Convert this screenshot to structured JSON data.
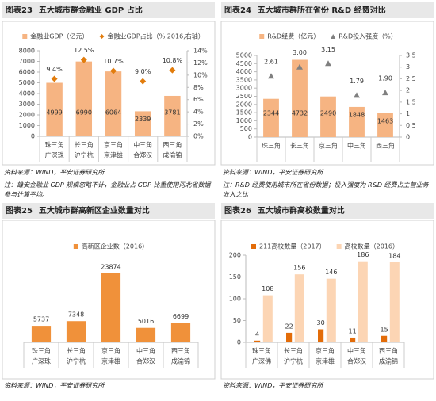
{
  "chart_data": [
    {
      "type": "combo",
      "figure": "图表23",
      "title": "五大城市群金融业 GDP 占比",
      "categories": [
        [
          "珠三角",
          "广深珠"
        ],
        [
          "长三角",
          "沪宁杭"
        ],
        [
          "京三角",
          "京津雄"
        ],
        [
          "中三角",
          "合郑汉"
        ],
        [
          "西三角",
          "成渝锦"
        ]
      ],
      "series": [
        {
          "name": "金融业GDP（亿元）",
          "kind": "bar",
          "color": "#f6b482",
          "values": [
            4999,
            6990,
            6064,
            2339,
            3781
          ]
        },
        {
          "name": "金融业GDP占比（%,2016,右轴）",
          "kind": "marker",
          "marker": "diamond",
          "axis": "y2",
          "color": "#e27c0c",
          "values": [
            9.4,
            12.5,
            10.7,
            9.0,
            10.8
          ],
          "value_labels": [
            "9.4%",
            "12.5%",
            "10.7%",
            "9.0%",
            "10.8%"
          ]
        }
      ],
      "ylim": [
        0,
        8000
      ],
      "yticks": [
        0,
        1000,
        2000,
        3000,
        4000,
        5000,
        6000,
        7000,
        8000
      ],
      "y2lim": [
        0,
        14
      ],
      "y2ticks": [
        {
          "value": 0,
          "label": "0%"
        },
        {
          "value": 2,
          "label": "2%"
        },
        {
          "value": 4,
          "label": "4%"
        },
        {
          "value": 6,
          "label": "6%"
        },
        {
          "value": 8,
          "label": "8%"
        },
        {
          "value": 10,
          "label": "10%"
        },
        {
          "value": 12,
          "label": "12%"
        },
        {
          "value": 14,
          "label": "14%"
        }
      ],
      "source": "资料来源：WIND，平安证券研究所",
      "note": "注：雄安金融业 GDP 规模忽略不计，金融业占 GDP 比重使用河北省数据参与计算平均。"
    },
    {
      "type": "combo",
      "figure": "图表24",
      "title": "五大城市群所在省份 R&D 经费对比",
      "categories": [
        [
          "珠三角"
        ],
        [
          "长三角"
        ],
        [
          "京三角"
        ],
        [
          "中三角"
        ],
        [
          "西三角"
        ]
      ],
      "series": [
        {
          "name": "R&D经费（亿元）",
          "kind": "bar",
          "color": "#f6b482",
          "values": [
            2344,
            4732,
            2490,
            1848,
            1463
          ]
        },
        {
          "name": "R&D投入强度（%）",
          "kind": "marker",
          "marker": "triangle",
          "axis": "y2",
          "color": "#808080",
          "values": [
            2.61,
            3.0,
            3.15,
            1.79,
            1.9
          ],
          "value_labels": [
            "2.61",
            "3.00",
            "3.15",
            "1.79",
            "1.90"
          ]
        }
      ],
      "ylim": [
        0,
        5000
      ],
      "yticks": [
        0,
        500,
        1000,
        1500,
        2000,
        2500,
        3000,
        3500,
        4000,
        4500,
        5000
      ],
      "y2lim": [
        0,
        3.5
      ],
      "y2ticks": [
        0,
        0.5,
        1,
        1.5,
        2,
        2.5,
        3,
        3.5
      ],
      "source": "资料来源：WIND，平安证券研究所",
      "note": "注：R&D 经费使用城市所在省份数据；投入强度为 R&D 经费占主营业务收入之比"
    },
    {
      "type": "bar",
      "figure": "图表25",
      "title": "五大城市群高新区企业数量对比",
      "categories": [
        [
          "珠三角",
          "广深珠"
        ],
        [
          "长三角",
          "沪宁杭"
        ],
        [
          "京三角",
          "京津雄"
        ],
        [
          "中三角",
          "合郑汉"
        ],
        [
          "西三角",
          "成渝锦"
        ]
      ],
      "series": [
        {
          "name": "高新区企业数（2016）",
          "kind": "bar",
          "color": "#f0913a",
          "values": [
            5737,
            7348,
            23874,
            5016,
            6699
          ]
        }
      ],
      "source": "资料来源：WIND，平安证券研究所"
    },
    {
      "type": "bar",
      "figure": "图表26",
      "title": "五大城市群高校数量对比",
      "categories": [
        [
          "珠三角",
          "广深佛"
        ],
        [
          "长三角",
          "沪宁杭"
        ],
        [
          "京三角",
          "京津雄"
        ],
        [
          "中三角",
          "合郑汉"
        ],
        [
          "西三角",
          "成渝锦"
        ]
      ],
      "series": [
        {
          "name": "211高校数量（2017）",
          "kind": "bar",
          "color": "#e36c09",
          "values": [
            4,
            22,
            30,
            11,
            15
          ]
        },
        {
          "name": "高校数量（2016）",
          "kind": "bar",
          "color": "#fcd5b4",
          "values": [
            108,
            156,
            146,
            186,
            184
          ]
        }
      ],
      "ylim": [
        0,
        200
      ],
      "yticks": [
        0,
        50,
        100,
        150,
        200
      ],
      "source": "资料来源：WIND，平安证券研究所"
    }
  ]
}
